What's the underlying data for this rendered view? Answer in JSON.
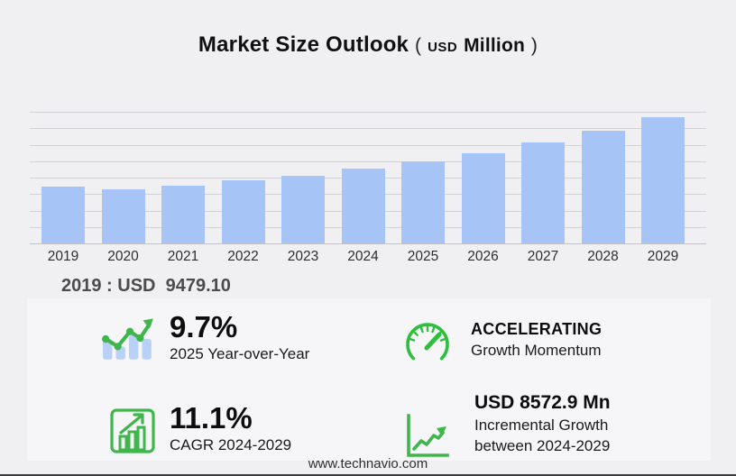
{
  "title": {
    "main": "Market Size Outlook",
    "paren_open": "(",
    "unit_small": "USD",
    "unit": "Million",
    "paren_close": ")"
  },
  "chart_data": {
    "type": "bar",
    "title": "Market Size Outlook (USD Million)",
    "categories": [
      "2019",
      "2020",
      "2021",
      "2022",
      "2023",
      "2024",
      "2025",
      "2026",
      "2027",
      "2028",
      "2029"
    ],
    "values": [
      9479.1,
      9030,
      9620,
      10520,
      11280,
      12376,
      13577,
      15030,
      16690,
      18650,
      20949
    ],
    "xlabel": "",
    "ylabel": "USD Million",
    "ylim": [
      0,
      21800
    ],
    "grid": true,
    "legend": "none",
    "bar_color": "#a7c4f6",
    "annotation": "2019 : USD  9479.10"
  },
  "base_year_label": "2019 : USD  9479.10",
  "stats": {
    "yoy": {
      "icon": "bar-trend-icon",
      "value": "9.7%",
      "label": "2025 Year-over-Year"
    },
    "momentum": {
      "icon": "gauge-icon",
      "value": "ACCELERATING",
      "label": "Growth Momentum"
    },
    "cagr": {
      "icon": "growth-bars-icon",
      "value": "11.1%",
      "label": "CAGR 2024-2029"
    },
    "incremental": {
      "icon": "axes-trend-icon",
      "value": "USD 8572.9 Mn",
      "label_line1": "Incremental Growth",
      "label_line2": "between 2024-2029"
    }
  },
  "footer": {
    "url": "www.technavio.com"
  },
  "colors": {
    "background": "#f0f0f2",
    "bar_blue": "#a7c4f6",
    "icon_bar_blue": "#b9d0f7",
    "accent_green": "#3fb64a",
    "gridline": "#d2d2d6"
  }
}
